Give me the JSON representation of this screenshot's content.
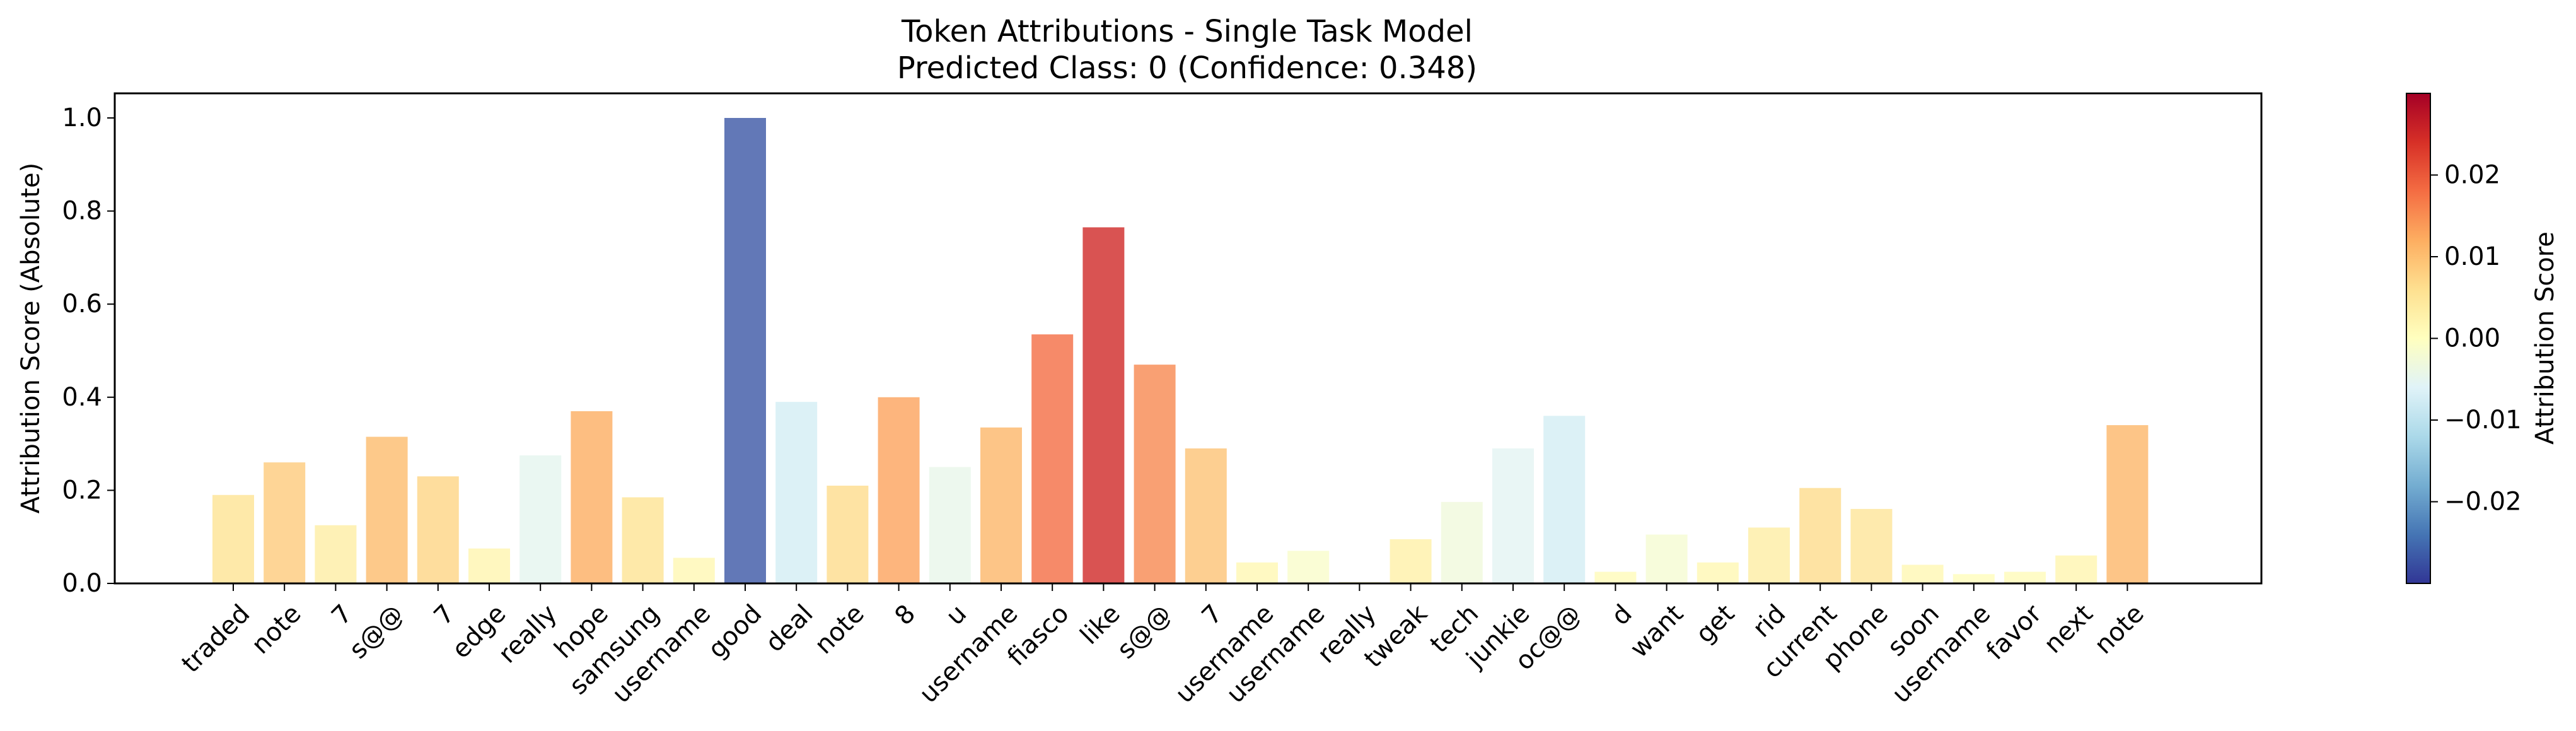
{
  "chart_data": {
    "type": "bar",
    "title": "Token Attributions - Single Task Model",
    "subtitle": "Predicted Class: 0 (Confidence: 0.348)",
    "xlabel": "",
    "ylabel": "Attribution Score (Absolute)",
    "ylim": [
      0,
      1.05
    ],
    "yticks": [
      "0.0",
      "0.2",
      "0.4",
      "0.6",
      "0.8",
      "1.0"
    ],
    "grid": false,
    "categories": [
      "traded",
      "note",
      "7",
      "s@@",
      "7",
      "edge",
      "really",
      "hope",
      "samsung",
      "username",
      "good",
      "deal",
      "note",
      "8",
      "u",
      "username",
      "fiasco",
      "like",
      "s@@",
      "7",
      "username",
      "username",
      "really",
      "tweak",
      "tech",
      "junkie",
      "oc@@",
      "d",
      "want",
      "get",
      "rid",
      "current",
      "phone",
      "soon",
      "username",
      "favor",
      "next",
      "note"
    ],
    "values": [
      0.19,
      0.26,
      0.125,
      0.315,
      0.23,
      0.075,
      0.275,
      0.37,
      0.185,
      0.055,
      1.0,
      0.39,
      0.21,
      0.4,
      0.25,
      0.335,
      0.535,
      0.765,
      0.47,
      0.29,
      0.045,
      0.07,
      0.003,
      0.095,
      0.175,
      0.29,
      0.36,
      0.025,
      0.105,
      0.045,
      0.12,
      0.205,
      0.16,
      0.04,
      0.02,
      0.025,
      0.06,
      0.34
    ],
    "attribution_scores": [
      0.0055,
      0.0085,
      0.0035,
      0.0105,
      0.0075,
      0.002,
      -0.005,
      0.012,
      0.0055,
      0.0015,
      -0.027,
      -0.0075,
      0.0065,
      0.013,
      -0.0045,
      0.011,
      0.018,
      0.025,
      0.0155,
      0.0095,
      0.0015,
      -0.0012,
      0.0001,
      0.003,
      -0.003,
      -0.0055,
      -0.0075,
      0.0008,
      -0.002,
      0.0015,
      0.0035,
      0.0065,
      0.005,
      0.0015,
      0.0005,
      0.0008,
      0.002,
      0.011
    ],
    "colorbar": {
      "label": "Attribution Score",
      "min": -0.03,
      "max": 0.03,
      "ticks": [
        "0.02",
        "0.01",
        "0.00",
        "−0.01",
        "−0.02"
      ],
      "tick_values": [
        0.02,
        0.01,
        0.0,
        -0.01,
        -0.02
      ],
      "colormap": "RdYlBu_r",
      "colormap_stops": [
        "#313695",
        "#4575b4",
        "#74add1",
        "#abd9e9",
        "#e0f3f8",
        "#ffffbf",
        "#fee090",
        "#fdae61",
        "#f46d43",
        "#d73027",
        "#a50026"
      ]
    }
  }
}
